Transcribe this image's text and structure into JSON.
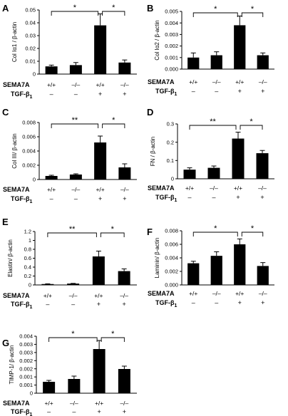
{
  "chart_data": [
    {
      "type": "bar",
      "panel": "A",
      "ylabel": "Col Iα1 / β-actin",
      "ylim": [
        0,
        0.05
      ],
      "yticks": [
        "0",
        "0.01",
        "0.02",
        "0.03",
        "0.04",
        "0.05"
      ],
      "genotypes": [
        "+/+",
        "–/–",
        "+/+",
        "–/–"
      ],
      "tgf": [
        "–",
        "–",
        "+",
        "+"
      ],
      "values": [
        0.006,
        0.007,
        0.038,
        0.009
      ],
      "errors": [
        0.001,
        0.002,
        0.009,
        0.002
      ],
      "significance": [
        {
          "from": 0,
          "to": 2,
          "label": "*"
        },
        {
          "from": 2,
          "to": 3,
          "label": "*"
        }
      ]
    },
    {
      "type": "bar",
      "panel": "B",
      "ylabel": "Col Iα2 / β-actin",
      "ylim": [
        0,
        0.005
      ],
      "yticks": [
        "0.000",
        "0.001",
        "0.002",
        "0.003",
        "0.004",
        "0.005"
      ],
      "genotypes": [
        "+/+",
        "–/–",
        "+/+",
        "–/–"
      ],
      "tgf": [
        "–",
        "–",
        "+",
        "+"
      ],
      "values": [
        0.001,
        0.0012,
        0.0038,
        0.0012
      ],
      "errors": [
        0.0004,
        0.0003,
        0.0008,
        0.0002
      ],
      "significance": [
        {
          "from": 0,
          "to": 2,
          "label": "*"
        },
        {
          "from": 2,
          "to": 3,
          "label": "*"
        }
      ]
    },
    {
      "type": "bar",
      "panel": "C",
      "ylabel": "Col III/ β-actin",
      "ylim": [
        0,
        0.008
      ],
      "yticks": [
        "0",
        "0.002",
        "0.004",
        "0.006",
        "0.008"
      ],
      "genotypes": [
        "+/+",
        "–/–",
        "+/+",
        "–/–"
      ],
      "tgf": [
        "–",
        "–",
        "+",
        "+"
      ],
      "values": [
        0.0005,
        0.0007,
        0.0052,
        0.0017
      ],
      "errors": [
        0.0001,
        0.0001,
        0.0009,
        0.0005
      ],
      "significance": [
        {
          "from": 0,
          "to": 2,
          "label": "**"
        },
        {
          "from": 2,
          "to": 3,
          "label": "*"
        }
      ]
    },
    {
      "type": "bar",
      "panel": "D",
      "ylabel": "FN / β-actin",
      "ylim": [
        0,
        0.3
      ],
      "yticks": [
        "0",
        "0.1",
        "0.2",
        "0.3"
      ],
      "genotypes": [
        "+/+",
        "–/–",
        "+/+",
        "–/–"
      ],
      "tgf": [
        "–",
        "–",
        "+",
        "+"
      ],
      "values": [
        0.05,
        0.06,
        0.22,
        0.14
      ],
      "errors": [
        0.01,
        0.01,
        0.035,
        0.015
      ],
      "significance": [
        {
          "from": 0,
          "to": 2,
          "label": "**"
        },
        {
          "from": 2,
          "to": 3,
          "label": "*"
        }
      ]
    },
    {
      "type": "bar",
      "panel": "E",
      "ylabel": "Elastin/ β-actin",
      "ylim": [
        0,
        1.2
      ],
      "yticks": [
        "0",
        "0.2",
        "0.4",
        "0.6",
        "0.8",
        "1",
        "1.2"
      ],
      "genotypes": [
        "+/+",
        "–/–",
        "+/+",
        "–/–"
      ],
      "tgf": [
        "–",
        "–",
        "+",
        "+"
      ],
      "values": [
        0.02,
        0.03,
        0.64,
        0.31
      ],
      "errors": [
        0.005,
        0.005,
        0.12,
        0.05
      ],
      "significance": [
        {
          "from": 0,
          "to": 2,
          "label": "**"
        },
        {
          "from": 2,
          "to": 3,
          "label": "*"
        }
      ]
    },
    {
      "type": "bar",
      "panel": "F",
      "ylabel": "Laminin/ β-actin",
      "ylim": [
        0,
        0.008
      ],
      "yticks": [
        "0.000",
        "0.002",
        "0.004",
        "0.006",
        "0.008"
      ],
      "genotypes": [
        "+/+",
        "–/–",
        "+/+",
        "–/–"
      ],
      "tgf": [
        "–",
        "–",
        "+",
        "+"
      ],
      "values": [
        0.0032,
        0.0043,
        0.006,
        0.0028
      ],
      "errors": [
        0.0003,
        0.0006,
        0.0008,
        0.0005
      ],
      "significance": [
        {
          "from": 0,
          "to": 2,
          "label": "*"
        },
        {
          "from": 2,
          "to": 3,
          "label": "*"
        }
      ]
    },
    {
      "type": "bar",
      "panel": "G",
      "ylabel": "TIMP-1/ β-actin",
      "ylim": [
        0,
        0.004
      ],
      "yticks": [
        "0",
        "0.001",
        "0.001",
        "0.002",
        "0.002",
        "0.003",
        "0.003",
        "0.004"
      ],
      "genotypes": [
        "+/+",
        "–/–",
        "+/+",
        "–/–"
      ],
      "tgf": [
        "–",
        "–",
        "+",
        "+"
      ],
      "values": [
        0.0008,
        0.001,
        0.0031,
        0.0017
      ],
      "errors": [
        0.0001,
        0.0002,
        0.0006,
        0.0002
      ],
      "significance": [
        {
          "from": 0,
          "to": 2,
          "label": "*"
        },
        {
          "from": 2,
          "to": 3,
          "label": "*"
        }
      ]
    }
  ],
  "row_labels": {
    "genotype": "SEMA7A",
    "treatment": "TGF-β",
    "treatment_sub": "1"
  },
  "colors": {
    "bar": "#000000",
    "axis": "#000000"
  }
}
